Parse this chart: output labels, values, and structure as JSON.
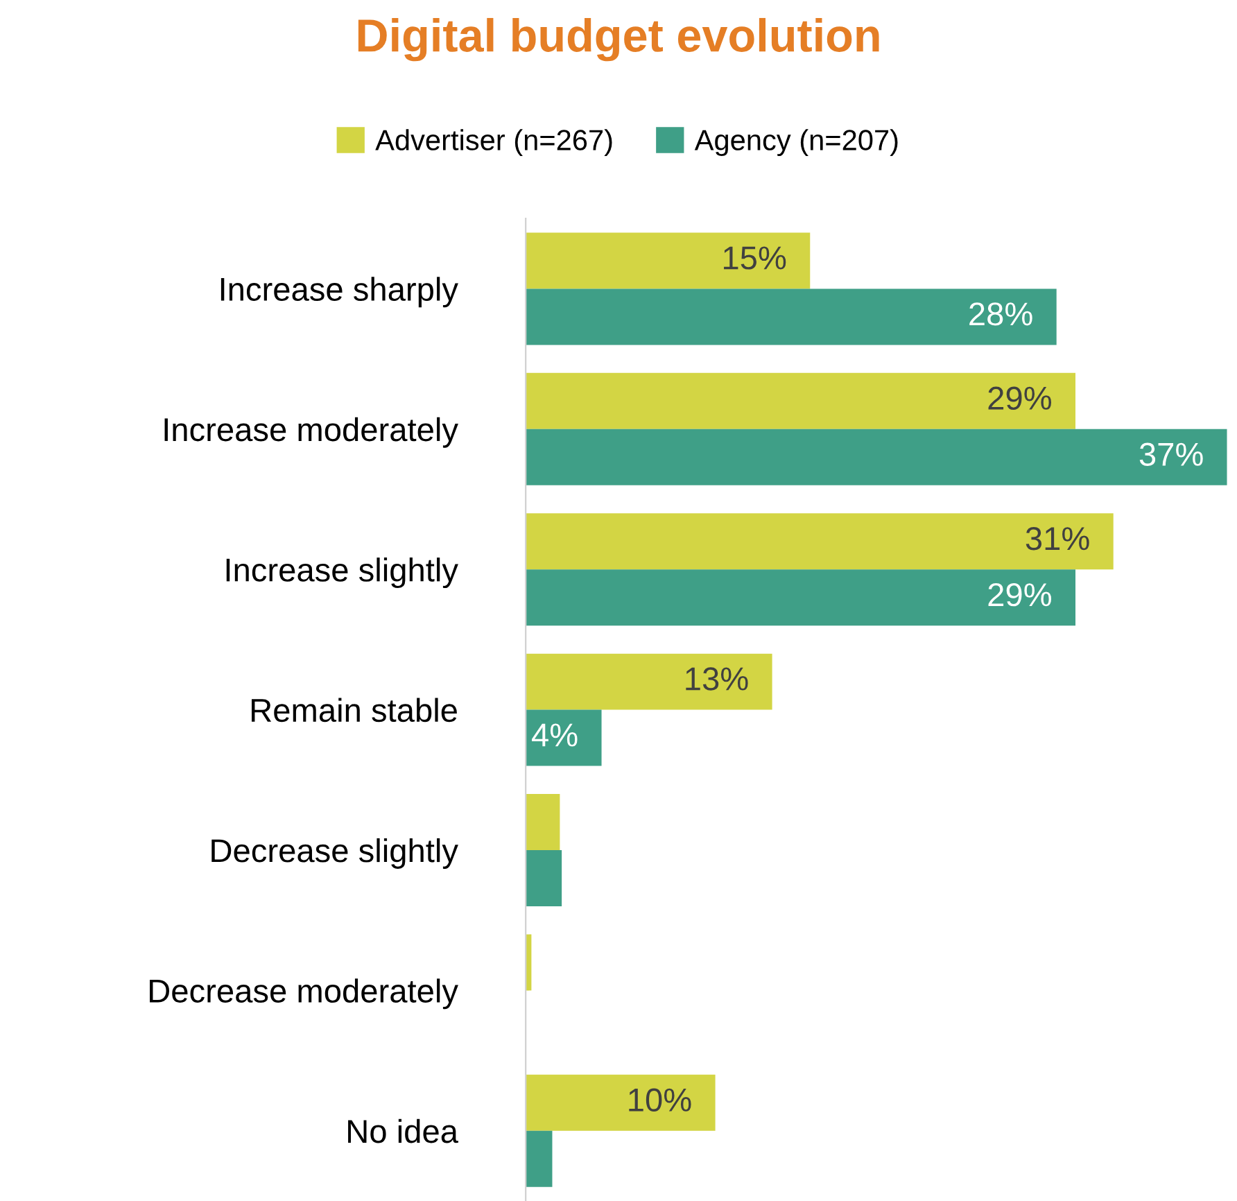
{
  "chart_data": {
    "type": "bar",
    "orientation": "horizontal",
    "title": "Digital budget evolution",
    "categories": [
      "Increase sharply",
      "Increase moderately",
      "Increase slightly",
      "Remain stable",
      "Decrease slightly",
      "Decrease moderately",
      "No idea"
    ],
    "series": [
      {
        "name": "Advertiser (n=267)",
        "color": "#d3d544",
        "values": [
          15,
          29,
          31,
          13,
          1.8,
          0.3,
          10
        ],
        "value_labels": [
          "15%",
          "29%",
          "31%",
          "13%",
          null,
          null,
          "10%"
        ]
      },
      {
        "name": "Agency (n=207)",
        "color": "#3f9f87",
        "values": [
          28,
          37,
          29,
          4,
          1.9,
          0,
          1.4
        ],
        "value_labels": [
          "28%",
          "37%",
          "29%",
          "4%",
          null,
          null,
          null
        ]
      }
    ],
    "legend": "top",
    "grid": false
  }
}
